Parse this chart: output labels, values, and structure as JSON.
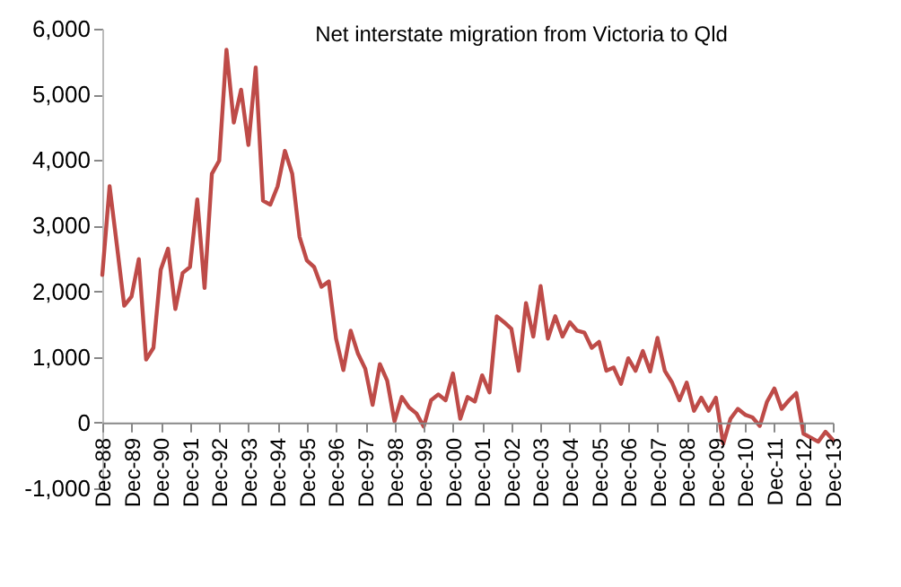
{
  "chart_data": {
    "type": "line",
    "title": "Net interstate migration from Victoria to Qld",
    "categories": [
      "Dec-88",
      null,
      null,
      null,
      "Dec-89",
      null,
      null,
      null,
      "Dec-90",
      null,
      null,
      null,
      "Dec-91",
      null,
      null,
      null,
      "Dec-92",
      null,
      null,
      null,
      "Dec-93",
      null,
      null,
      null,
      "Dec-94",
      null,
      null,
      null,
      "Dec-95",
      null,
      null,
      null,
      "Dec-96",
      null,
      null,
      null,
      "Dec-97",
      null,
      null,
      null,
      "Dec-98",
      null,
      null,
      null,
      "Dec-99",
      null,
      null,
      null,
      "Dec-00",
      null,
      null,
      null,
      "Dec-01",
      null,
      null,
      null,
      "Dec-02",
      null,
      null,
      null,
      "Dec-03",
      null,
      null,
      null,
      "Dec-04",
      null,
      null,
      null,
      "Dec-05",
      null,
      null,
      null,
      "Dec-06",
      null,
      null,
      null,
      "Dec-07",
      null,
      null,
      null,
      "Dec-08",
      null,
      null,
      null,
      "Dec-09",
      null,
      null,
      null,
      "Dec-10",
      null,
      null,
      null,
      "Dec-11",
      null,
      null,
      null,
      "Dec-12",
      null,
      null,
      null,
      "Dec-13"
    ],
    "series": [
      {
        "color": "#be4b48",
        "values": [
          2250,
          3600,
          2700,
          1780,
          1920,
          2490,
          960,
          1140,
          2330,
          2650,
          1730,
          2280,
          2370,
          3400,
          2050,
          3790,
          3990,
          5680,
          4570,
          5070,
          4230,
          5410,
          3380,
          3320,
          3600,
          4140,
          3790,
          2830,
          2470,
          2370,
          2070,
          2150,
          1280,
          800,
          1400,
          1050,
          820,
          270,
          890,
          640,
          20,
          390,
          230,
          140,
          -60,
          340,
          430,
          340,
          750,
          60,
          390,
          320,
          720,
          460,
          1620,
          1530,
          1430,
          790,
          1820,
          1310,
          2080,
          1280,
          1620,
          1310,
          1530,
          1400,
          1370,
          1140,
          1230,
          790,
          840,
          590,
          980,
          790,
          1090,
          780,
          1290,
          790,
          610,
          340,
          610,
          180,
          380,
          180,
          380,
          -320,
          60,
          210,
          120,
          80,
          -50,
          320,
          520,
          210,
          340,
          450,
          -170,
          -230,
          -290,
          -140,
          -260
        ]
      }
    ],
    "ylim": [
      -1000,
      6000
    ],
    "yticks": [
      {
        "value": -1000,
        "label": "-1,000"
      },
      0,
      {
        "value": 1000,
        "label": "1,000"
      },
      {
        "value": 2000,
        "label": "2,000"
      },
      {
        "value": 3000,
        "label": "3,000"
      },
      {
        "value": 4000,
        "label": "4,000"
      },
      {
        "value": 5000,
        "label": "5,000"
      },
      {
        "value": 6000,
        "label": "6,000"
      }
    ],
    "grid": false
  }
}
